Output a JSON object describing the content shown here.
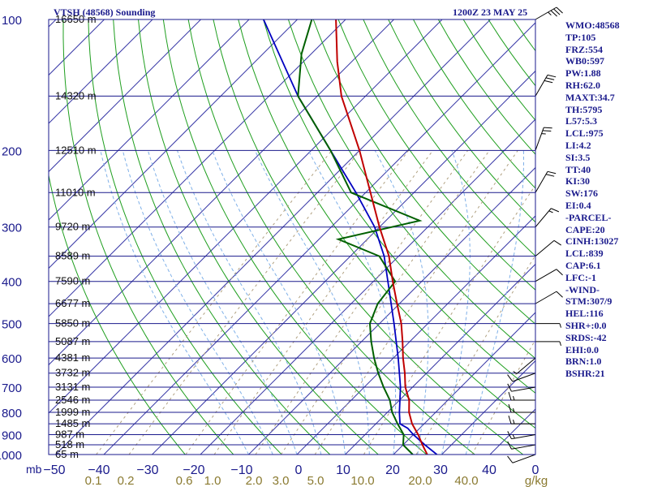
{
  "header": {
    "station": "VTSH (48568) Sounding",
    "datetime": "1200Z 23 MAY 25"
  },
  "indices": [
    "WMO:48568",
    "TP:105",
    "FRZ:554",
    "WB0:597",
    "PW:1.88",
    "RH:62.0",
    "MAXT:34.7",
    "TH:5795",
    "L57:5.3",
    "LCL:975",
    "LI:4.2",
    "SI:3.5",
    "TT:40",
    "KI:30",
    "SW:176",
    "EI:0.4",
    "-PARCEL-",
    "CAPE:20",
    "CINH:13027",
    "LCL:839",
    "CAP:6.1",
    "LFC:-1",
    "-WIND-",
    "STM:307/9",
    "HEL:116",
    "SHR+:0.0",
    "SRDS:-42",
    "EHI:0.0",
    "BRN:1.0",
    "BSHR:21"
  ],
  "chart_data": {
    "type": "skew-t",
    "title": "",
    "x_unit_label": "mb",
    "mixing_ratio_unit": "g/kg",
    "pressure_range": [
      1000,
      100
    ],
    "temperature_range": [
      -50,
      0
    ],
    "colors": {
      "frame": "#1a1a8c",
      "isobar": "#1a1a8c",
      "isotherm": "#3a3aa8",
      "dry_adiabat": "#1e9e1e",
      "moist_adiabat": "#7fb0e8",
      "mixing_ratio": "#b0a080",
      "temperature": "#c00000",
      "dewpoint": "#006000",
      "parcel": "#0000c0",
      "wind": "#000000"
    },
    "pressure_ticks": [
      1000,
      900,
      800,
      700,
      600,
      500,
      400,
      300,
      200,
      100
    ],
    "temp_ticks": [
      -50,
      -40,
      -30,
      -20,
      -10,
      0,
      10,
      20,
      30,
      40,
      0
    ],
    "mixing_ratio_ticks": [
      "0.1",
      "0.2",
      "0.6",
      "1.0",
      "2.0",
      "3.0",
      "5.0",
      "10.0",
      "20.0",
      "40.0"
    ],
    "heights": [
      {
        "p": 100,
        "h": "16650 m"
      },
      {
        "p": 150,
        "h": "14320 m"
      },
      {
        "p": 200,
        "h": "12510 m"
      },
      {
        "p": 250,
        "h": "11010 m"
      },
      {
        "p": 300,
        "h": "9720 m"
      },
      {
        "p": 350,
        "h": "8589 m"
      },
      {
        "p": 400,
        "h": "7590 m"
      },
      {
        "p": 450,
        "h": "6677 m"
      },
      {
        "p": 500,
        "h": "5850 m"
      },
      {
        "p": 550,
        "h": "5087 m"
      },
      {
        "p": 600,
        "h": "4381 m"
      },
      {
        "p": 650,
        "h": "3732 m"
      },
      {
        "p": 700,
        "h": "3131 m"
      },
      {
        "p": 750,
        "h": "2546 m"
      },
      {
        "p": 800,
        "h": "1999 m"
      },
      {
        "p": 850,
        "h": "1485 m"
      },
      {
        "p": 900,
        "h": "987 m"
      },
      {
        "p": 950,
        "h": "518 m"
      },
      {
        "p": 1000,
        "h": "65 m"
      }
    ],
    "temperature": [
      {
        "p": 1000,
        "t": 27.0
      },
      {
        "p": 950,
        "t": 24.0
      },
      {
        "p": 900,
        "t": 21.0
      },
      {
        "p": 850,
        "t": 17.5
      },
      {
        "p": 800,
        "t": 14.5
      },
      {
        "p": 750,
        "t": 12.0
      },
      {
        "p": 700,
        "t": 8.5
      },
      {
        "p": 650,
        "t": 5.5
      },
      {
        "p": 600,
        "t": 2.0
      },
      {
        "p": 550,
        "t": -1.5
      },
      {
        "p": 500,
        "t": -5.5
      },
      {
        "p": 450,
        "t": -10.5
      },
      {
        "p": 400,
        "t": -16.0
      },
      {
        "p": 350,
        "t": -22.0
      },
      {
        "p": 300,
        "t": -30.0
      },
      {
        "p": 250,
        "t": -39.0
      },
      {
        "p": 200,
        "t": -50.0
      },
      {
        "p": 150,
        "t": -65.0
      },
      {
        "p": 125,
        "t": -73.0
      },
      {
        "p": 100,
        "t": -82.0
      }
    ],
    "dewpoint": [
      {
        "p": 1000,
        "t": 24.0
      },
      {
        "p": 950,
        "t": 20.0
      },
      {
        "p": 900,
        "t": 18.0
      },
      {
        "p": 850,
        "t": 14.5
      },
      {
        "p": 800,
        "t": 11.0
      },
      {
        "p": 750,
        "t": 8.0
      },
      {
        "p": 700,
        "t": 4.0
      },
      {
        "p": 650,
        "t": 0.0
      },
      {
        "p": 600,
        "t": -4.0
      },
      {
        "p": 550,
        "t": -8.0
      },
      {
        "p": 500,
        "t": -12.0
      },
      {
        "p": 450,
        "t": -14.5
      },
      {
        "p": 400,
        "t": -15.5
      },
      {
        "p": 350,
        "t": -24.0
      },
      {
        "p": 320,
        "t": -36.0
      },
      {
        "p": 290,
        "t": -23.0
      },
      {
        "p": 250,
        "t": -43.0
      },
      {
        "p": 200,
        "t": -56.0
      },
      {
        "p": 150,
        "t": -74.0
      },
      {
        "p": 120,
        "t": -82.0
      },
      {
        "p": 100,
        "t": -87.0
      }
    ],
    "parcel": [
      {
        "p": 1000,
        "t": 29.0
      },
      {
        "p": 950,
        "t": 24.5
      },
      {
        "p": 900,
        "t": 20.0
      },
      {
        "p": 870,
        "t": 17.5
      },
      {
        "p": 850,
        "t": 15.0
      },
      {
        "p": 800,
        "t": 12.5
      },
      {
        "p": 700,
        "t": 7.5
      },
      {
        "p": 600,
        "t": 1.0
      },
      {
        "p": 500,
        "t": -7.0
      },
      {
        "p": 400,
        "t": -17.0
      },
      {
        "p": 350,
        "t": -23.0
      },
      {
        "p": 300,
        "t": -31.0
      },
      {
        "p": 250,
        "t": -42.0
      },
      {
        "p": 200,
        "t": -56.0
      },
      {
        "p": 150,
        "t": -74.0
      },
      {
        "p": 100,
        "t": -97.0
      }
    ],
    "winds": [
      {
        "p": 1000,
        "dir": 250,
        "spd": 10
      },
      {
        "p": 950,
        "dir": 260,
        "spd": 10
      },
      {
        "p": 900,
        "dir": 260,
        "spd": 15
      },
      {
        "p": 850,
        "dir": 270,
        "spd": 15
      },
      {
        "p": 800,
        "dir": 270,
        "spd": 15
      },
      {
        "p": 750,
        "dir": 270,
        "spd": 15
      },
      {
        "p": 700,
        "dir": 260,
        "spd": 10
      },
      {
        "p": 650,
        "dir": 250,
        "spd": 10
      },
      {
        "p": 600,
        "dir": 230,
        "spd": 5
      },
      {
        "p": 550,
        "dir": 90,
        "spd": 5
      },
      {
        "p": 500,
        "dir": 90,
        "spd": 5
      },
      {
        "p": 450,
        "dir": 60,
        "spd": 10
      },
      {
        "p": 400,
        "dir": 60,
        "spd": 10
      },
      {
        "p": 350,
        "dir": 50,
        "spd": 10
      },
      {
        "p": 300,
        "dir": 40,
        "spd": 15
      },
      {
        "p": 250,
        "dir": 30,
        "spd": 20
      },
      {
        "p": 200,
        "dir": 20,
        "spd": 25
      },
      {
        "p": 150,
        "dir": 30,
        "spd": 30
      },
      {
        "p": 100,
        "dir": 60,
        "spd": 35
      }
    ]
  }
}
